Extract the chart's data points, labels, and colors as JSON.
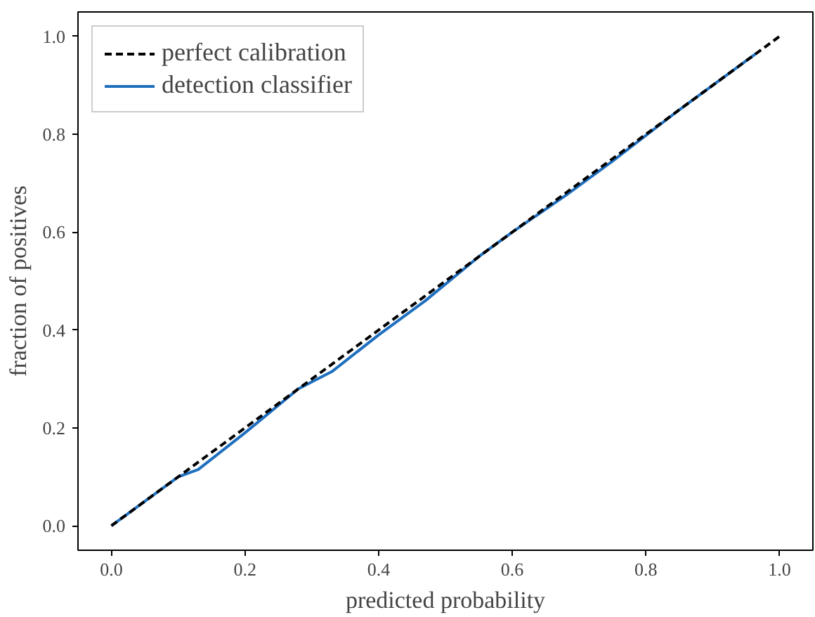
{
  "chart_data": {
    "type": "line",
    "xlabel": "predicted probability",
    "ylabel": "fraction of positives",
    "xlim": [
      -0.05,
      1.05
    ],
    "ylim": [
      -0.05,
      1.05
    ],
    "xticks": [
      {
        "value": 0,
        "label": "0.0"
      },
      0.2,
      0.4,
      0.6,
      0.8,
      {
        "value": 1,
        "label": "1.0"
      }
    ],
    "yticks": [
      {
        "value": 0,
        "label": "0.0"
      },
      0.2,
      0.4,
      0.6,
      0.8,
      {
        "value": 1,
        "label": "1.0"
      }
    ],
    "grid": false,
    "legend": "top left",
    "marker": "none",
    "series": [
      {
        "name": "perfect calibration",
        "color": "#000000",
        "line_style": "dashed",
        "x": [
          0,
          1
        ],
        "values": [
          0,
          1
        ]
      },
      {
        "name": "detection classifier",
        "color": "#1f6fbf",
        "line_style": "solid",
        "x": [
          0,
          0.05,
          0.1,
          0.13,
          0.2,
          0.28,
          0.33,
          0.4,
          0.47,
          0.55,
          0.6,
          0.68,
          0.75,
          0.85,
          0.965
        ],
        "values": [
          0,
          0.05,
          0.1,
          0.115,
          0.19,
          0.28,
          0.315,
          0.39,
          0.46,
          0.55,
          0.6,
          0.675,
          0.745,
          0.85,
          0.965
        ]
      }
    ]
  }
}
